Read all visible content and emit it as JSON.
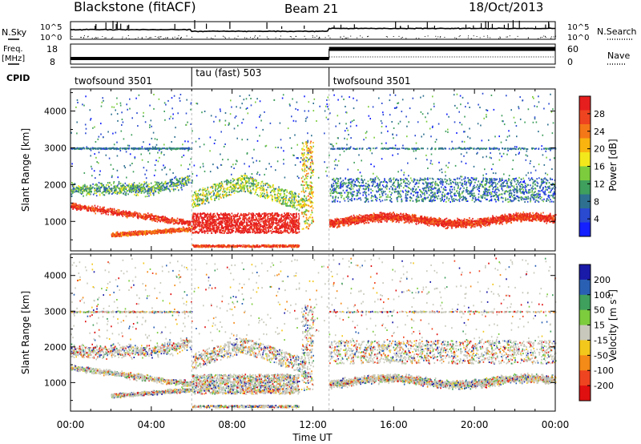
{
  "header": {
    "title": "Blackstone (fitACF)",
    "beam": "Beam 21",
    "date": "18/Oct/2013"
  },
  "strips": {
    "nsky_label": "N.Sky",
    "nsky_ticks": [
      "10^5",
      "10^0"
    ],
    "nsearch_label": "N.Search",
    "nsearch_ticks": [
      "10^5",
      "10^0"
    ],
    "freq_label_1": "Freq.",
    "freq_label_2": "[MHz]",
    "freq_ticks": [
      "18",
      "8"
    ],
    "nave_label": "Nave",
    "nave_ticks": [
      "60",
      "0"
    ],
    "cpid_label": "CPID",
    "cpid_segments": [
      {
        "label": "twofsound 3501",
        "start": 0,
        "end": 6
      },
      {
        "label": "tau (fast) 503",
        "start": 6,
        "end": 12.8
      },
      {
        "label": "twofsound 3501",
        "start": 12.8,
        "end": 24
      }
    ]
  },
  "chart_data": [
    {
      "type": "heatmap",
      "name": "power-panel",
      "ylabel": "Slant Range [km]",
      "yticks": [
        1000,
        2000,
        3000,
        4000
      ],
      "ylim": [
        200,
        4600
      ],
      "xlim": [
        0,
        24
      ],
      "colorbar": {
        "label": "Power [dB]",
        "ticks": [
          4,
          8,
          12,
          16,
          20,
          24,
          28
        ],
        "colors": [
          "#1420ff",
          "#2a4ad0",
          "#2e7090",
          "#3f9f5c",
          "#7ccc3e",
          "#f3e81c",
          "#f9b410",
          "#f47818",
          "#ef4420",
          "#e61e1e"
        ]
      }
    },
    {
      "type": "heatmap",
      "name": "velocity-panel",
      "ylabel": "Slant Range [km]",
      "xlabel": "Time UT",
      "yticks": [
        1000,
        2000,
        3000,
        4000
      ],
      "ylim": [
        200,
        4600
      ],
      "xlim": [
        0,
        24
      ],
      "xticks": [
        "00:00",
        "04:00",
        "08:00",
        "12:00",
        "16:00",
        "20:00",
        "00:00"
      ],
      "colorbar": {
        "label": "Velocity [m s^-1]",
        "ticks": [
          200,
          100,
          50,
          15,
          -15,
          -50,
          -100,
          -200
        ],
        "colors": [
          "#1a1aa8",
          "#2a60b4",
          "#3f9f5c",
          "#7ccc3e",
          "#c8c8bc",
          "#f3c81c",
          "#f48a18",
          "#ef4420",
          "#e01010"
        ]
      }
    }
  ]
}
